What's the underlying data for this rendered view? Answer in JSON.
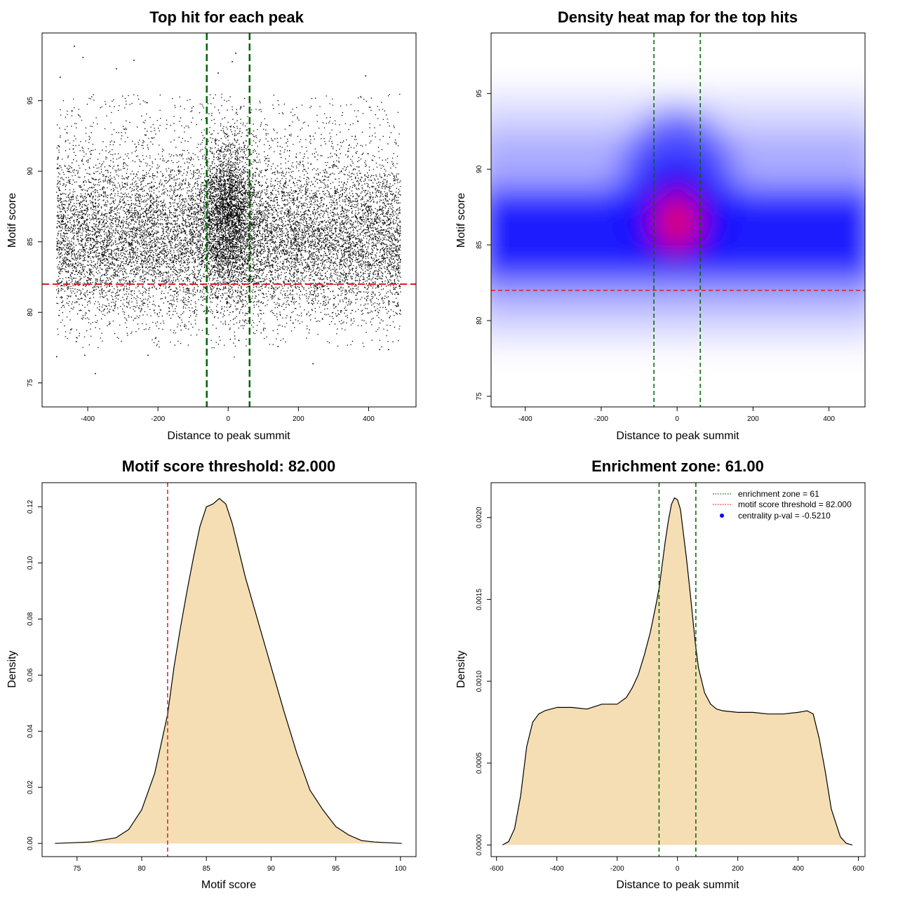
{
  "chart_data": [
    {
      "type": "scatter",
      "title": "Top hit for each peak",
      "xlabel": "Distance to peak summit",
      "ylabel": "Motif score",
      "xlim": [
        -530,
        535
      ],
      "ylim": [
        73.3,
        99.8
      ],
      "x_ticks": [
        -400,
        -200,
        0,
        200,
        400
      ],
      "y_ticks": [
        75,
        80,
        85,
        90,
        95
      ],
      "point_color": "#000000",
      "vlines": {
        "x": [
          -61,
          61
        ],
        "color": "#006400"
      },
      "hline": {
        "y": 82,
        "color": "#e41a1c"
      },
      "points_note": "dense cloud of roughly 20000 hits over x -490..490, score ~77..95, concentrated near x=0 and score ~86",
      "outliers": [
        {
          "x": -440,
          "y": 98.9
        },
        {
          "x": -415,
          "y": 98.1
        },
        {
          "x": -320,
          "y": 97.3
        },
        {
          "x": -270,
          "y": 97.9
        },
        {
          "x": -480,
          "y": 96.7
        },
        {
          "x": 20,
          "y": 98.4
        },
        {
          "x": 10,
          "y": 97.8
        },
        {
          "x": -30,
          "y": 97.0
        },
        {
          "x": 390,
          "y": 96.8
        },
        {
          "x": -410,
          "y": 77.0
        },
        {
          "x": -380,
          "y": 75.7
        },
        {
          "x": -230,
          "y": 77.0
        },
        {
          "x": 240,
          "y": 76.4
        },
        {
          "x": 430,
          "y": 77.4
        },
        {
          "x": 455,
          "y": 77.4
        },
        {
          "x": -490,
          "y": 76.9
        }
      ]
    },
    {
      "type": "heatmap",
      "title": "Density heat map for the top hits",
      "xlabel": "Distance to peak summit",
      "ylabel": "Motif score",
      "xlim": [
        -490,
        495
      ],
      "ylim": [
        74.3,
        99.0
      ],
      "x_ticks": [
        -400,
        -200,
        0,
        200,
        400
      ],
      "y_ticks": [
        75,
        80,
        85,
        90,
        95
      ],
      "color_scale": [
        "#ffffff",
        "#0000ff",
        "#ff0000"
      ],
      "peak": {
        "x": 0,
        "y": 86.5
      },
      "vlines": {
        "x": [
          -61,
          61
        ],
        "color": "#006400"
      },
      "hline": {
        "y": 82,
        "color": "#e41a1c"
      }
    },
    {
      "type": "area",
      "title": "Motif score threshold: 82.000",
      "xlabel": "Motif score",
      "ylabel": "Density",
      "xlim": [
        72.3,
        101.2
      ],
      "ylim": [
        -0.0047,
        0.1286
      ],
      "x_ticks": [
        75,
        80,
        85,
        90,
        95,
        100
      ],
      "y_ticks": [
        "0.00",
        "0.02",
        "0.04",
        "0.06",
        "0.08",
        "0.10",
        "0.12"
      ],
      "fill": "#f5deb3",
      "vline": {
        "x": 82,
        "color": "#e41a1c"
      },
      "x": [
        73.3,
        76,
        78,
        79,
        80,
        81,
        82,
        82.5,
        83,
        83.5,
        84,
        84.5,
        85,
        85.5,
        86,
        86.5,
        87,
        88,
        89,
        90,
        91,
        92,
        93,
        94,
        95,
        96,
        97,
        98,
        100.1
      ],
      "y": [
        0,
        0.0005,
        0.002,
        0.005,
        0.012,
        0.025,
        0.046,
        0.063,
        0.077,
        0.09,
        0.102,
        0.113,
        0.12,
        0.121,
        0.123,
        0.121,
        0.114,
        0.095,
        0.079,
        0.063,
        0.047,
        0.032,
        0.019,
        0.012,
        0.006,
        0.003,
        0.001,
        0.0005,
        0
      ]
    },
    {
      "type": "area",
      "title": "Enrichment zone: 61.00",
      "xlabel": "Distance to peak summit",
      "ylabel": "Density",
      "xlim": [
        -618,
        622
      ],
      "ylim": [
        -7.12e-05,
        0.0022132
      ],
      "x_ticks": [
        -600,
        -400,
        -200,
        0,
        200,
        400,
        600
      ],
      "y_ticks": [
        "0.0000",
        "0.0005",
        "0.0010",
        "0.0015",
        "0.0020"
      ],
      "fill": "#f5deb3",
      "vlines": {
        "x": [
          -61,
          61
        ],
        "color": "#006400"
      },
      "x": [
        -580,
        -560,
        -540,
        -520,
        -500,
        -480,
        -460,
        -440,
        -420,
        -400,
        -350,
        -300,
        -250,
        -200,
        -170,
        -150,
        -130,
        -110,
        -90,
        -70,
        -60,
        -50,
        -40,
        -30,
        -20,
        -10,
        0,
        10,
        20,
        30,
        40,
        50,
        60,
        70,
        90,
        110,
        130,
        150,
        200,
        250,
        300,
        350,
        400,
        430,
        450,
        470,
        490,
        510,
        540,
        560,
        580
      ],
      "y": [
        0,
        2e-05,
        0.0001,
        0.0003,
        0.0006,
        0.00075,
        0.0008,
        0.00082,
        0.00083,
        0.00084,
        0.00084,
        0.00083,
        0.00086,
        0.00086,
        0.0009,
        0.00096,
        0.00104,
        0.00116,
        0.0013,
        0.00148,
        0.00158,
        0.00172,
        0.00186,
        0.00198,
        0.00208,
        0.00212,
        0.00211,
        0.00205,
        0.0019,
        0.00175,
        0.00158,
        0.0014,
        0.00122,
        0.00108,
        0.00093,
        0.00086,
        0.00083,
        0.00082,
        0.00081,
        0.00081,
        0.0008,
        0.0008,
        0.00081,
        0.00082,
        0.0008,
        0.00065,
        0.00045,
        0.00022,
        5e-05,
        1e-05,
        0
      ]
    }
  ],
  "legend": {
    "placement": "top-right",
    "items": [
      {
        "label": "enrichment zone = 61",
        "style": "dotted-line",
        "color": "#006400"
      },
      {
        "label": "motif score threshold = 82.000",
        "style": "dotted-line",
        "color": "#e41a1c"
      },
      {
        "label": "centrality p-val = -0.5210",
        "style": "dot",
        "color": "#0000ff"
      }
    ]
  }
}
